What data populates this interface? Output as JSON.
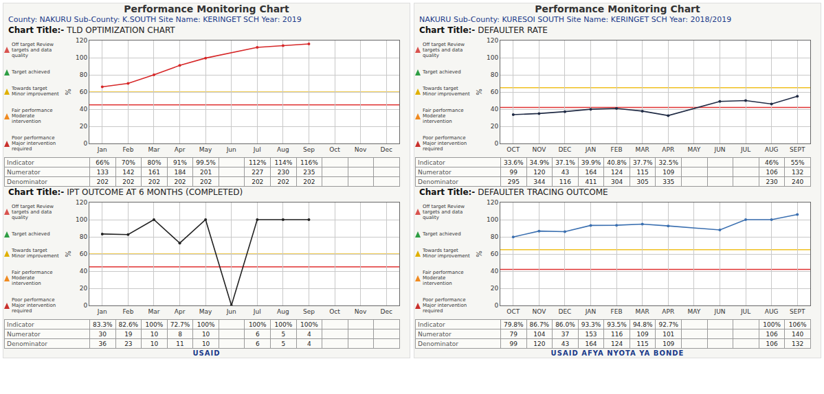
{
  "panels": [
    {
      "title": "Performance Monitoring Chart",
      "info": "County: NAKURU  Sub-County: K.SOUTH  Site Name: KERINGET SCH  Year: 2019",
      "footer": [
        "USAID"
      ]
    },
    {
      "title": "Performance Monitoring Chart",
      "info": "NAKURU  Sub-County: KURESOI SOUTH  Site Name: KERINGET SCH  Year: 2018/2019",
      "footer": [
        "USAID",
        "AFYA NYOTA YA BONDE"
      ]
    }
  ],
  "title_label": "Chart Title:-",
  "key": [
    "Off target Review targets and data quality",
    "Target achieved",
    "Towards target Minor improvement",
    "Fair performance Moderate intervention",
    "Poor performance Major intervention required"
  ],
  "chart_data": [
    {
      "type": "line",
      "title": "TLD OPTIMIZATION CHART",
      "categories": [
        "Jan",
        "Feb",
        "Mar",
        "Apr",
        "May",
        "Jun",
        "Jul",
        "Aug",
        "Sep",
        "Oct",
        "Nov",
        "Dec"
      ],
      "values": [
        66,
        70,
        80,
        91,
        99.5,
        null,
        112,
        114,
        116,
        null,
        null,
        null
      ],
      "color": "#d62728",
      "marker": "circle",
      "ylabel": "%",
      "ylim": [
        0,
        120
      ],
      "yticks": [
        0,
        20,
        40,
        60,
        80,
        100,
        120
      ],
      "grid": true,
      "reference_lines": [
        {
          "value": 45,
          "color": "#e03030"
        },
        {
          "value": 60,
          "color": "#f0c020"
        }
      ],
      "table": {
        "row_labels": [
          "Indicator",
          "Numerator",
          "Denominator"
        ],
        "rows": [
          [
            "66%",
            "70%",
            "80%",
            "91%",
            "99.5%",
            null,
            "112%",
            "114%",
            "116%",
            null,
            null,
            null
          ],
          [
            133,
            142,
            161,
            184,
            201,
            null,
            227,
            230,
            235,
            null,
            null,
            null
          ],
          [
            202,
            202,
            202,
            202,
            202,
            null,
            202,
            202,
            202,
            null,
            null,
            null
          ]
        ]
      }
    },
    {
      "type": "line",
      "title": "IPT OUTCOME AT 6 MONTHS (COMPLETED)",
      "categories": [
        "Jan",
        "Feb",
        "Mar",
        "Apr",
        "May",
        "Jun",
        "Jul",
        "Aug",
        "Sep",
        "Oct",
        "Nov",
        "Dec"
      ],
      "values": [
        83.3,
        82.6,
        100,
        72.7,
        100,
        0,
        100,
        100,
        100,
        null,
        null,
        null
      ],
      "color": "#222222",
      "marker": "circle",
      "ylabel": "%",
      "ylim": [
        0,
        120
      ],
      "yticks": [
        0,
        20,
        40,
        60,
        80,
        100,
        120
      ],
      "grid": true,
      "reference_lines": [
        {
          "value": 45,
          "color": "#e03030"
        },
        {
          "value": 60,
          "color": "#f0c020"
        }
      ],
      "table": {
        "row_labels": [
          "Indicator",
          "Numerator",
          "Denominator"
        ],
        "rows": [
          [
            "83.3%",
            "82.6%",
            "100%",
            "72.7%",
            "100%",
            null,
            "100%",
            "100%",
            "100%",
            null,
            null,
            null
          ],
          [
            30,
            19,
            10,
            8,
            10,
            null,
            6,
            5,
            4,
            null,
            null,
            null
          ],
          [
            36,
            23,
            10,
            11,
            10,
            null,
            6,
            5,
            4,
            null,
            null,
            null
          ]
        ]
      }
    },
    {
      "type": "line",
      "title": "DEFAULTER RATE",
      "categories": [
        "OCT",
        "NOV",
        "DEC",
        "JAN",
        "FEB",
        "MAR",
        "APR",
        "MAY",
        "JUN",
        "JUL",
        "AUG",
        "SEPT"
      ],
      "values": [
        33.6,
        34.9,
        37.1,
        39.9,
        40.8,
        37.7,
        32.5,
        null,
        49,
        50,
        46,
        55
      ],
      "color": "#1f2a44",
      "marker": "circle",
      "ylabel": "%",
      "ylim": [
        0,
        120
      ],
      "yticks": [
        0,
        20,
        40,
        60,
        80,
        100,
        120
      ],
      "grid": true,
      "reference_lines": [
        {
          "value": 42,
          "color": "#e03030"
        },
        {
          "value": 65,
          "color": "#f0c020"
        }
      ],
      "table": {
        "row_labels": [
          "Indicator",
          "Numerator",
          "Denominator"
        ],
        "rows": [
          [
            "33.6%",
            "34.9%",
            "37.1%",
            "39.9%",
            "40.8%",
            "37.7%",
            "32.5%",
            null,
            null,
            null,
            "46%",
            "55%"
          ],
          [
            99,
            120,
            43,
            164,
            124,
            115,
            109,
            null,
            null,
            null,
            106,
            132
          ],
          [
            295,
            344,
            116,
            411,
            304,
            305,
            335,
            null,
            null,
            null,
            230,
            240
          ]
        ]
      }
    },
    {
      "type": "line",
      "title": "DEFAULTER TRACING OUTCOME",
      "categories": [
        "OCT",
        "NOV",
        "DEC",
        "JAN",
        "FEB",
        "MAR",
        "APR",
        "MAY",
        "JUN",
        "JUL",
        "AUG",
        "SEPT"
      ],
      "values": [
        79.8,
        86.7,
        86.0,
        93.3,
        93.5,
        94.8,
        92.7,
        null,
        88,
        100,
        100,
        106
      ],
      "color": "#3a6fb0",
      "marker": "circle",
      "ylabel": "%",
      "ylim": [
        0,
        120
      ],
      "yticks": [
        0,
        20,
        40,
        60,
        80,
        100,
        120
      ],
      "grid": true,
      "reference_lines": [
        {
          "value": 42,
          "color": "#e03030"
        },
        {
          "value": 65,
          "color": "#f0c020"
        }
      ],
      "table": {
        "row_labels": [
          "Indicator",
          "Numerator",
          "Denominator"
        ],
        "rows": [
          [
            "79.8%",
            "86.7%",
            "86.0%",
            "93.3%",
            "93.5%",
            "94.8%",
            "92.7%",
            null,
            null,
            null,
            "100%",
            "106%"
          ],
          [
            79,
            104,
            37,
            153,
            116,
            109,
            101,
            null,
            null,
            null,
            106,
            140
          ],
          [
            99,
            120,
            43,
            164,
            124,
            115,
            109,
            null,
            null,
            null,
            106,
            132
          ]
        ]
      }
    }
  ]
}
